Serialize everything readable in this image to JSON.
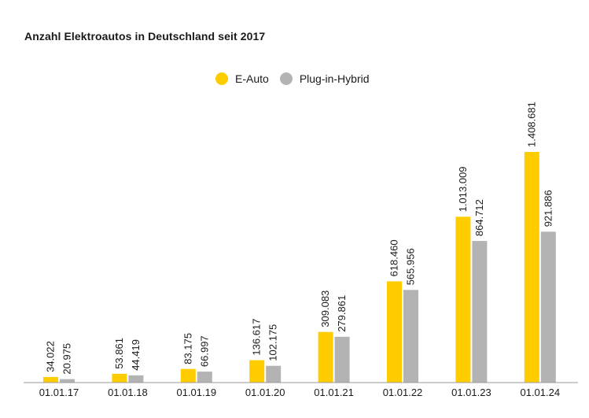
{
  "chart_data": {
    "type": "bar",
    "title": "Anzahl Elektroautos in Deutschland seit 2017",
    "categories": [
      "01.01.17",
      "01.01.18",
      "01.01.19",
      "01.01.20",
      "01.01.21",
      "01.01.22",
      "01.01.23",
      "01.01.24"
    ],
    "series": [
      {
        "name": "E-Auto",
        "color": "#FFCC00",
        "values": [
          34022,
          53861,
          83175,
          136617,
          309083,
          618460,
          1013009,
          1408681
        ],
        "labels": [
          "34.022",
          "53.861",
          "83.175",
          "136.617",
          "309.083",
          "618.460",
          "1.013.009",
          "1.408.681"
        ]
      },
      {
        "name": "Plug-in-Hybrid",
        "color": "#B3B3B3",
        "values": [
          20975,
          44419,
          66997,
          102175,
          279861,
          565956,
          864712,
          921886
        ],
        "labels": [
          "20.975",
          "44.419",
          "66.997",
          "102.175",
          "279.861",
          "565.956",
          "864.712",
          "921.886"
        ]
      }
    ],
    "xlabel": "",
    "ylabel": "",
    "ylim": [
      0,
      1408681
    ],
    "grid": false,
    "legend_position": "top-center"
  }
}
